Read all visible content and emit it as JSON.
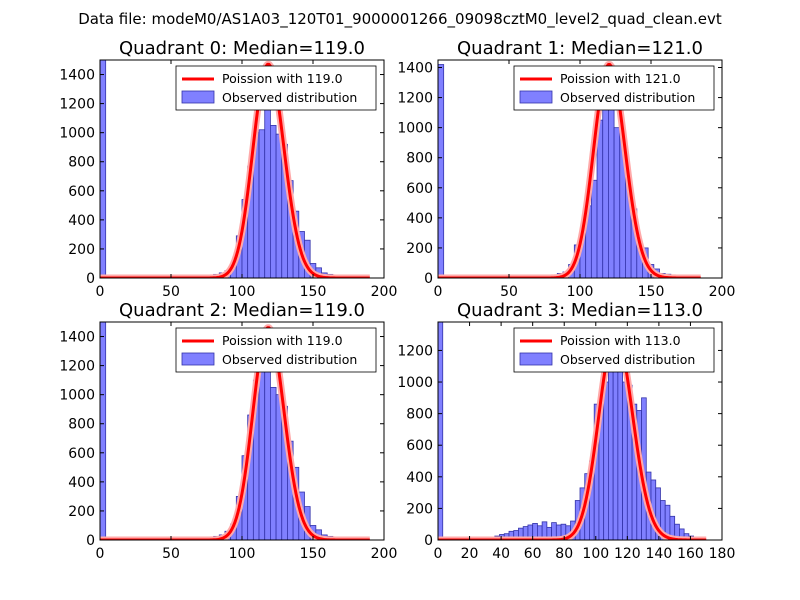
{
  "suptitle": "Data file: modeM0/AS1A03_120T01_9000001266_09098cztM0_level2_quad_clean.evt",
  "colors": {
    "hist_fill": "#8080ff",
    "hist_edge": "#3333aa",
    "poisson_line": "#ff0000",
    "poisson_glow": "#ffaaaa"
  },
  "chart_data": [
    {
      "type": "bar",
      "title": "Quadrant 0: Median=119.0",
      "median": 119.0,
      "xlim": [
        0,
        200
      ],
      "ylim": [
        0,
        1500
      ],
      "xticks": [
        0,
        50,
        100,
        150,
        200
      ],
      "yticks": [
        0,
        200,
        400,
        600,
        800,
        1000,
        1200,
        1400
      ],
      "legend": {
        "placement": "top-right",
        "line_label": "Poission with 119.0",
        "hist_label": "Observed distribution"
      },
      "bin_width": 4,
      "bins": [
        [
          0,
          1500
        ],
        [
          68,
          10
        ],
        [
          76,
          20
        ],
        [
          80,
          25
        ],
        [
          84,
          35
        ],
        [
          88,
          50
        ],
        [
          92,
          100
        ],
        [
          96,
          290
        ],
        [
          100,
          540
        ],
        [
          104,
          770
        ],
        [
          108,
          1000
        ],
        [
          112,
          1020
        ],
        [
          116,
          1220
        ],
        [
          120,
          1050
        ],
        [
          124,
          990
        ],
        [
          128,
          920
        ],
        [
          132,
          670
        ],
        [
          136,
          460
        ],
        [
          140,
          320
        ],
        [
          144,
          260
        ],
        [
          148,
          100
        ],
        [
          152,
          70
        ],
        [
          156,
          35
        ],
        [
          160,
          25
        ],
        [
          164,
          20
        ],
        [
          168,
          15
        ],
        [
          172,
          10
        ]
      ],
      "poisson": {
        "mean": 119.0,
        "peak": 1470,
        "x_range": [
          0,
          190
        ]
      }
    },
    {
      "type": "bar",
      "title": "Quadrant 1: Median=121.0",
      "median": 121.0,
      "xlim": [
        0,
        200
      ],
      "ylim": [
        0,
        1450
      ],
      "xticks": [
        0,
        50,
        100,
        150,
        200
      ],
      "yticks": [
        0,
        200,
        400,
        600,
        800,
        1000,
        1200,
        1400
      ],
      "legend": {
        "placement": "top-right",
        "line_label": "Poission with 121.0",
        "hist_label": "Observed distribution"
      },
      "bin_width": 4,
      "bins": [
        [
          0,
          1420
        ],
        [
          68,
          15
        ],
        [
          76,
          15
        ],
        [
          84,
          30
        ],
        [
          88,
          40
        ],
        [
          92,
          90
        ],
        [
          96,
          220
        ],
        [
          100,
          300
        ],
        [
          104,
          480
        ],
        [
          108,
          650
        ],
        [
          112,
          1050
        ],
        [
          116,
          1260
        ],
        [
          120,
          1150
        ],
        [
          124,
          1000
        ],
        [
          128,
          960
        ],
        [
          132,
          660
        ],
        [
          136,
          460
        ],
        [
          140,
          230
        ],
        [
          144,
          200
        ],
        [
          148,
          90
        ],
        [
          152,
          60
        ],
        [
          156,
          30
        ],
        [
          160,
          25
        ],
        [
          164,
          20
        ],
        [
          168,
          10
        ]
      ],
      "poisson": {
        "mean": 121.0,
        "peak": 1420,
        "x_range": [
          0,
          185
        ]
      }
    },
    {
      "type": "bar",
      "title": "Quadrant 2: Median=119.0",
      "median": 119.0,
      "xlim": [
        0,
        200
      ],
      "ylim": [
        0,
        1500
      ],
      "xticks": [
        0,
        50,
        100,
        150,
        200
      ],
      "yticks": [
        0,
        200,
        400,
        600,
        800,
        1000,
        1200,
        1400
      ],
      "legend": {
        "placement": "top-right",
        "line_label": "Poission with 119.0",
        "hist_label": "Observed distribution"
      },
      "bin_width": 4,
      "bins": [
        [
          0,
          1500
        ],
        [
          72,
          10
        ],
        [
          76,
          20
        ],
        [
          80,
          25
        ],
        [
          84,
          35
        ],
        [
          88,
          60
        ],
        [
          92,
          110
        ],
        [
          96,
          300
        ],
        [
          100,
          580
        ],
        [
          104,
          860
        ],
        [
          108,
          1100
        ],
        [
          112,
          1200
        ],
        [
          116,
          1300
        ],
        [
          120,
          1050
        ],
        [
          124,
          1000
        ],
        [
          128,
          920
        ],
        [
          132,
          680
        ],
        [
          136,
          500
        ],
        [
          140,
          330
        ],
        [
          144,
          230
        ],
        [
          148,
          100
        ],
        [
          152,
          70
        ],
        [
          156,
          35
        ],
        [
          160,
          25
        ],
        [
          164,
          20
        ],
        [
          168,
          15
        ],
        [
          172,
          10
        ]
      ],
      "poisson": {
        "mean": 119.0,
        "peak": 1460,
        "x_range": [
          0,
          190
        ]
      }
    },
    {
      "type": "bar",
      "title": "Quadrant 3: Median=113.0",
      "median": 113.0,
      "xlim": [
        0,
        180
      ],
      "ylim": [
        0,
        1380
      ],
      "xticks": [
        0,
        20,
        40,
        60,
        80,
        100,
        120,
        140,
        160,
        180
      ],
      "yticks": [
        0,
        200,
        400,
        600,
        800,
        1000,
        1200
      ],
      "legend": {
        "placement": "top-right",
        "line_label": "Poission with 113.0",
        "hist_label": "Observed distribution"
      },
      "bin_width": 3,
      "bins": [
        [
          0,
          1380
        ],
        [
          36,
          25
        ],
        [
          39,
          35
        ],
        [
          42,
          40
        ],
        [
          45,
          55
        ],
        [
          48,
          60
        ],
        [
          51,
          75
        ],
        [
          54,
          85
        ],
        [
          57,
          95
        ],
        [
          60,
          105
        ],
        [
          63,
          90
        ],
        [
          66,
          115
        ],
        [
          69,
          80
        ],
        [
          72,
          110
        ],
        [
          75,
          95
        ],
        [
          78,
          100
        ],
        [
          81,
          90
        ],
        [
          84,
          120
        ],
        [
          87,
          250
        ],
        [
          90,
          330
        ],
        [
          93,
          420
        ],
        [
          96,
          500
        ],
        [
          99,
          860
        ],
        [
          102,
          870
        ],
        [
          105,
          1000
        ],
        [
          108,
          1200
        ],
        [
          111,
          1180
        ],
        [
          114,
          1100
        ],
        [
          117,
          1000
        ],
        [
          120,
          980
        ],
        [
          123,
          860
        ],
        [
          126,
          820
        ],
        [
          129,
          900
        ],
        [
          132,
          430
        ],
        [
          135,
          380
        ],
        [
          138,
          330
        ],
        [
          141,
          250
        ],
        [
          144,
          220
        ],
        [
          147,
          150
        ],
        [
          150,
          100
        ],
        [
          153,
          70
        ],
        [
          156,
          40
        ],
        [
          159,
          25
        ],
        [
          162,
          15
        ]
      ],
      "poisson": {
        "mean": 113.0,
        "peak": 1310,
        "x_range": [
          0,
          170
        ]
      }
    }
  ]
}
